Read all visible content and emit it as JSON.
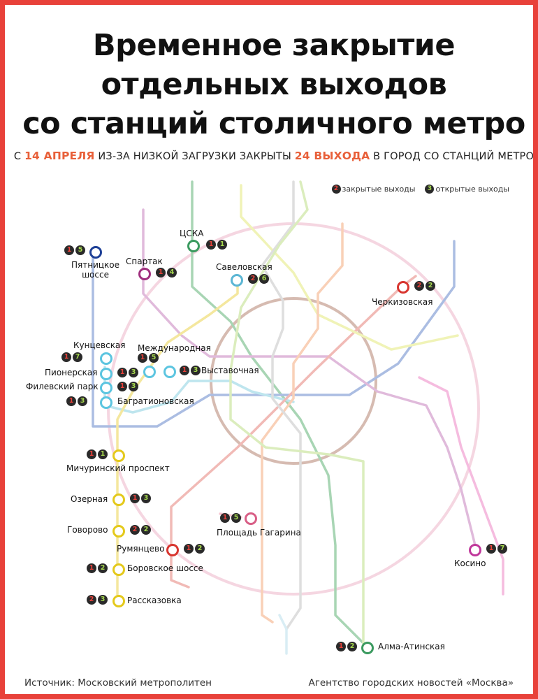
{
  "title_lines": [
    "Временное закрытие",
    "отдельных выходов",
    "со станций столичного метро"
  ],
  "subtitle": {
    "part1": "С",
    "date": "14 АПРЕЛЯ",
    "part2": "ИЗ-ЗА НИЗКОЙ ЗАГРУЗКИ ЗАКРЫТЫ",
    "count": "24 ВЫХОДА",
    "part3": "В ГОРОД СО СТАНЦИЙ МЕТРО"
  },
  "legend": {
    "closed_sample": "2",
    "closed_label": "закрытые выходы",
    "open_sample": "3",
    "open_label": "открытые выходы"
  },
  "colors": {
    "frame": "#e8413a",
    "highlight": "#e8603a",
    "closed_number": "#e8413a",
    "open_number": "#a6d84e",
    "badge_bg": "#2a2a2a",
    "ring_line": "#d8bfb5",
    "circle_line": "#eebfd3"
  },
  "stations": [
    {
      "id": "pyatnitskoe",
      "label": "Пятницкое\nшоссе",
      "closed": "1",
      "open": "5",
      "color": "#1d3f96"
    },
    {
      "id": "cska",
      "label": "ЦСКА",
      "closed": "1",
      "open": "1",
      "color": "#3b9a5f"
    },
    {
      "id": "spartak",
      "label": "Спартак",
      "closed": "1",
      "open": "4",
      "color": "#a0307f"
    },
    {
      "id": "savelovskaya",
      "label": "Савеловская",
      "closed": "2",
      "open": "6",
      "color": "#5cb6d4"
    },
    {
      "id": "cherkizovskaya",
      "label": "Черкизовская",
      "closed": "2",
      "open": "2",
      "color": "#d8352f"
    },
    {
      "id": "kuntsevskaya",
      "label": "Кунцевская",
      "closed": "1",
      "open": "7",
      "color": "#5cc5e0"
    },
    {
      "id": "mezhdunarodnaya",
      "label": "Международная",
      "closed": "1",
      "open": "5",
      "color": "#5cc5e0"
    },
    {
      "id": "pionerskaya",
      "label": "Пионерская",
      "closed": "1",
      "open": "3",
      "color": "#5cc5e0"
    },
    {
      "id": "vystavochnaya",
      "label": "Выставочная",
      "closed": "1",
      "open": "3",
      "color": "#5cc5e0"
    },
    {
      "id": "filevsky",
      "label": "Филевский парк",
      "closed": "1",
      "open": "3",
      "color": "#5cc5e0"
    },
    {
      "id": "bagrationovskaya",
      "label": "Багратионовская",
      "closed": "1",
      "open": "3",
      "color": "#5cc5e0"
    },
    {
      "id": "michurinsky",
      "label": "Мичуринский проспект",
      "closed": "1",
      "open": "1",
      "color": "#e4c91b"
    },
    {
      "id": "ozernaya",
      "label": "Озерная",
      "closed": "1",
      "open": "3",
      "color": "#e4c91b"
    },
    {
      "id": "plgagarina",
      "label": "Площадь Гагарина",
      "closed": "1",
      "open": "5",
      "color": "#d85e86"
    },
    {
      "id": "govorovo",
      "label": "Говорово",
      "closed": "2",
      "open": "2",
      "color": "#e4c91b"
    },
    {
      "id": "rumyantsevo",
      "label": "Румянцево",
      "closed": "1",
      "open": "2",
      "color": "#d8352f"
    },
    {
      "id": "kosino",
      "label": "Косино",
      "closed": "1",
      "open": "7",
      "color": "#c0389b"
    },
    {
      "id": "borovskoe",
      "label": "Боровское шоссе",
      "closed": "1",
      "open": "2",
      "color": "#e4c91b"
    },
    {
      "id": "rasskazovka",
      "label": "Рассказовка",
      "closed": "2",
      "open": "3",
      "color": "#e4c91b"
    },
    {
      "id": "almaatinskaya",
      "label": "Алма-Атинская",
      "closed": "1",
      "open": "2",
      "color": "#3b9a5f"
    }
  ],
  "footer": {
    "source": "Источник: Московский метрополитен",
    "agency": "Агентство городских новостей «Москва»"
  }
}
